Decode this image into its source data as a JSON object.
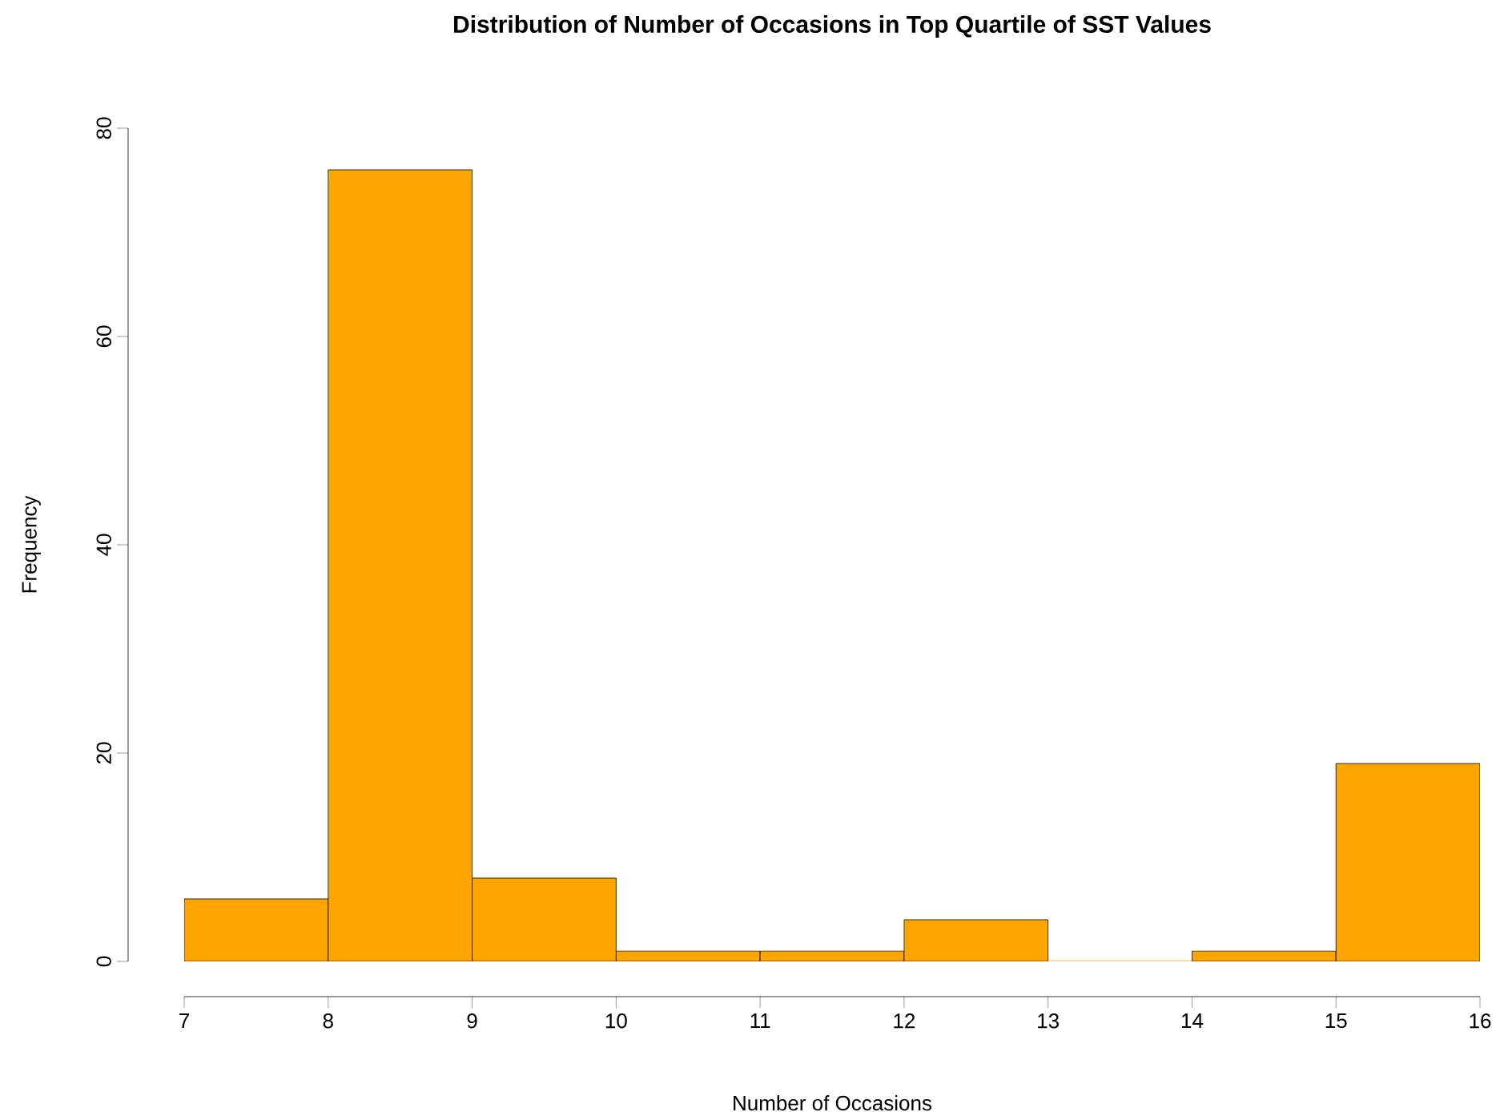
{
  "chart_data": {
    "type": "histogram",
    "title": "Distribution of Number of Occasions in Top Quartile of SST Values",
    "xlabel": "Number of Occasions",
    "ylabel": "Frequency",
    "bins": [
      7,
      8,
      9,
      10,
      11,
      12,
      13,
      14,
      15,
      16
    ],
    "values": [
      6,
      76,
      8,
      1,
      1,
      4,
      0,
      1,
      19
    ],
    "color": "#ffa500",
    "xlim": [
      7,
      16
    ],
    "xticks": [
      7,
      8,
      9,
      10,
      11,
      12,
      13,
      14,
      15,
      16
    ],
    "ylim": [
      0,
      80
    ],
    "yticks": [
      0,
      20,
      40,
      60,
      80
    ],
    "grid": false
  }
}
